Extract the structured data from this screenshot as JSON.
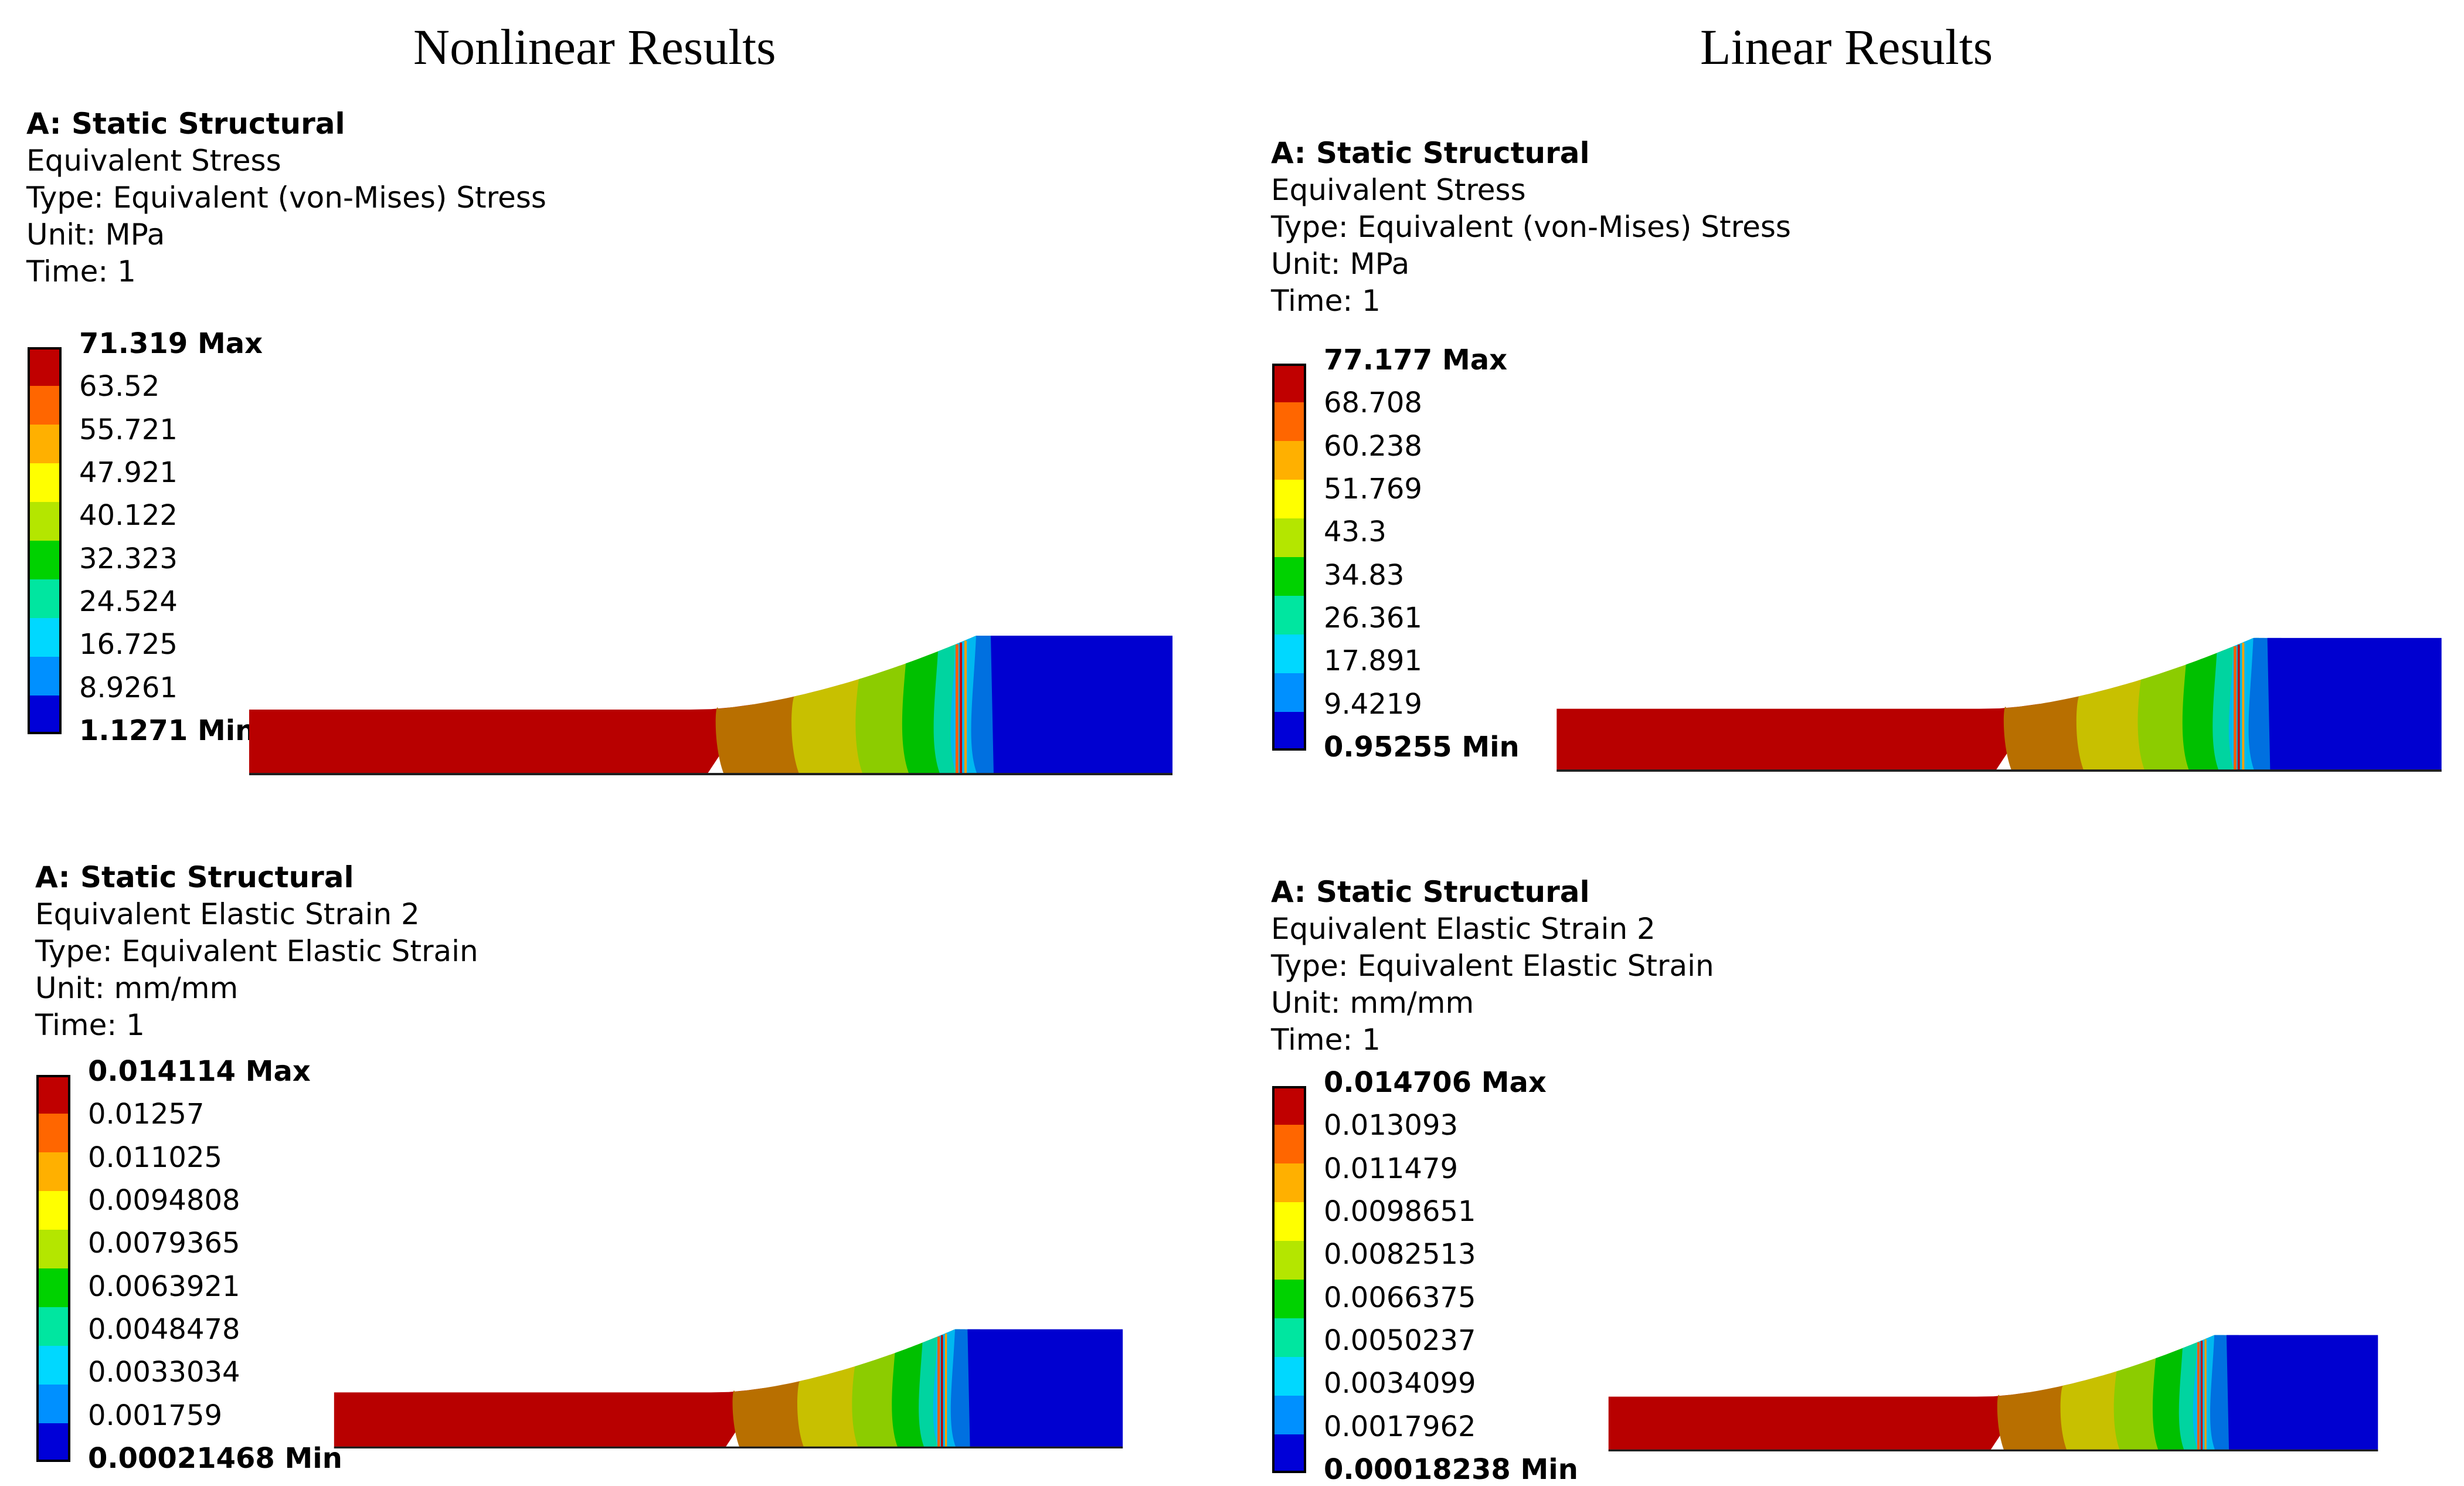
{
  "columns": {
    "left": "Nonlinear Results",
    "right": "Linear Results"
  },
  "palette": [
    "#c00000",
    "#ff6600",
    "#ffb000",
    "#ffff00",
    "#b4e600",
    "#00d200",
    "#00e6a0",
    "#00d8ff",
    "#0090ff",
    "#0000d8"
  ],
  "panels": [
    {
      "id": "nl-stress",
      "analysis": "A: Static Structural",
      "result": "Equivalent Stress",
      "type": "Type: Equivalent (von-Mises) Stress",
      "unit": "Unit: MPa",
      "time": "Time: 1",
      "max": "71.319 Max",
      "min": "1.1271 Min",
      "levels": [
        "63.52",
        "55.721",
        "47.921",
        "40.122",
        "32.323",
        "24.524",
        "16.725",
        "8.9261"
      ]
    },
    {
      "id": "lin-stress",
      "analysis": "A: Static Structural",
      "result": "Equivalent Stress",
      "type": "Type: Equivalent (von-Mises) Stress",
      "unit": "Unit: MPa",
      "time": "Time: 1",
      "max": "77.177 Max",
      "min": "0.95255 Min",
      "levels": [
        "68.708",
        "60.238",
        "51.769",
        "43.3",
        "34.83",
        "26.361",
        "17.891",
        "9.4219"
      ]
    },
    {
      "id": "nl-strain",
      "analysis": "A: Static Structural",
      "result": "Equivalent Elastic Strain 2",
      "type": "Type: Equivalent Elastic Strain",
      "unit": "Unit: mm/mm",
      "time": "Time: 1",
      "max": "0.014114 Max",
      "min": "0.00021468 Min",
      "levels": [
        "0.01257",
        "0.011025",
        "0.0094808",
        "0.0079365",
        "0.0063921",
        "0.0048478",
        "0.0033034",
        "0.001759"
      ]
    },
    {
      "id": "lin-strain",
      "analysis": "A: Static Structural",
      "result": "Equivalent Elastic Strain 2",
      "type": "Type: Equivalent Elastic Strain",
      "unit": "Unit: mm/mm",
      "time": "Time: 1",
      "max": "0.014706 Max",
      "min": "0.00018238 Min",
      "levels": [
        "0.013093",
        "0.011479",
        "0.0098651",
        "0.0082513",
        "0.0066375",
        "0.0050237",
        "0.0034099",
        "0.0017962"
      ]
    }
  ]
}
